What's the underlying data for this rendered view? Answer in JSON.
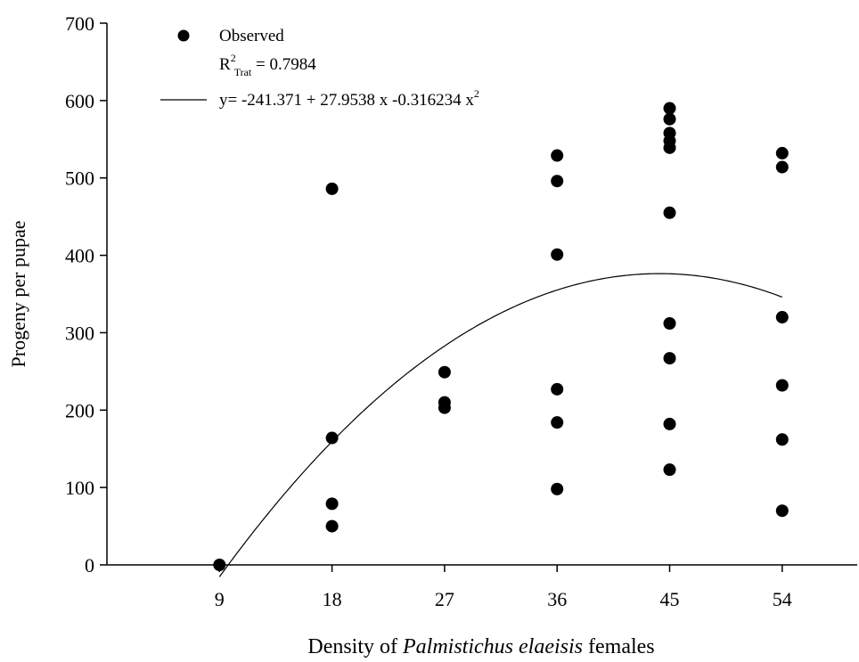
{
  "chart_data": {
    "type": "scatter",
    "title": "",
    "xlabel_parts": [
      "Density of ",
      "Palmistichus elaeisis",
      " females"
    ],
    "ylabel": "Progeny per pupae",
    "xlim": [
      0,
      60
    ],
    "ylim": [
      0,
      700
    ],
    "xticks": [
      9,
      18,
      27,
      36,
      45,
      54
    ],
    "yticks": [
      0,
      100,
      200,
      300,
      400,
      500,
      600,
      700
    ],
    "legend": {
      "position": "top-left",
      "observed_label": "Observed",
      "r2_base": "R",
      "r2_sup": "2",
      "r2_sub": "Trat",
      "r2_value": " = 0.7984",
      "equation_text": "y= -241.371 + 27.9538 x -0.316234 x",
      "equation_sup": "2"
    },
    "fit": {
      "intercept": -241.371,
      "b1": 27.9538,
      "b2": -0.316234,
      "x_range": [
        9,
        54
      ]
    },
    "series": [
      {
        "name": "Observed",
        "points": [
          [
            9,
            0
          ],
          [
            18,
            486
          ],
          [
            18,
            164
          ],
          [
            18,
            79
          ],
          [
            18,
            50
          ],
          [
            27,
            249
          ],
          [
            27,
            210
          ],
          [
            27,
            203
          ],
          [
            36,
            529
          ],
          [
            36,
            496
          ],
          [
            36,
            401
          ],
          [
            36,
            227
          ],
          [
            36,
            184
          ],
          [
            36,
            98
          ],
          [
            45,
            590
          ],
          [
            45,
            576
          ],
          [
            45,
            558
          ],
          [
            45,
            548
          ],
          [
            45,
            539
          ],
          [
            45,
            455
          ],
          [
            45,
            312
          ],
          [
            45,
            267
          ],
          [
            45,
            182
          ],
          [
            45,
            123
          ],
          [
            54,
            532
          ],
          [
            54,
            514
          ],
          [
            54,
            320
          ],
          [
            54,
            232
          ],
          [
            54,
            162
          ],
          [
            54,
            70
          ]
        ]
      }
    ]
  }
}
